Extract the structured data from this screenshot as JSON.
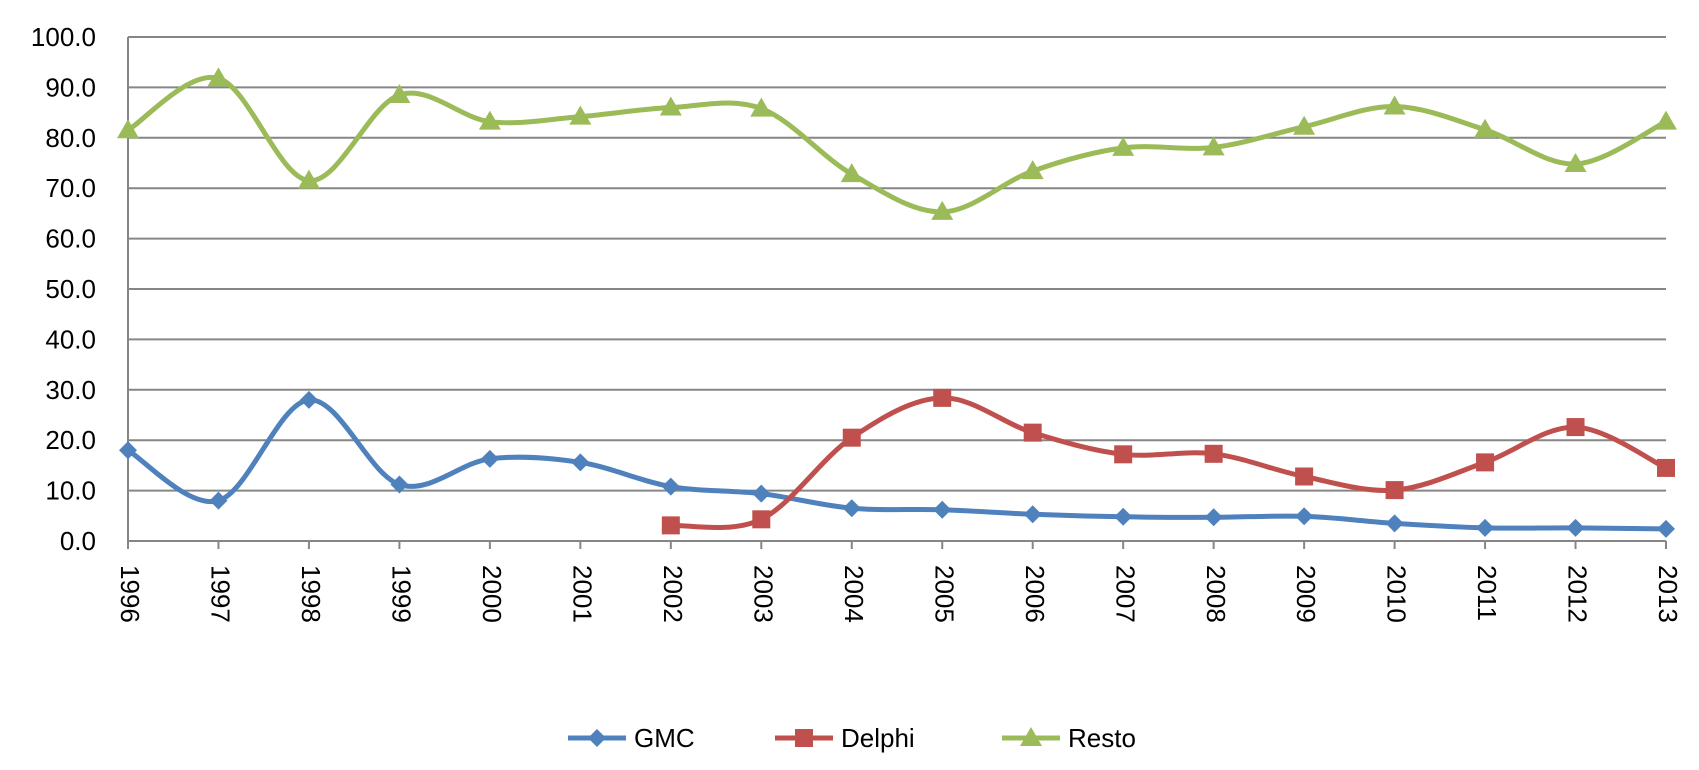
{
  "chart_data": {
    "type": "line",
    "x": [
      "1996",
      "1997",
      "1998",
      "1999",
      "2000",
      "2001",
      "2002",
      "2003",
      "2004",
      "2005",
      "2006",
      "2007",
      "2008",
      "2009",
      "2010",
      "2011",
      "2012",
      "2013"
    ],
    "ylim": [
      0,
      100
    ],
    "yticks": [
      "0.0",
      "10.0",
      "20.0",
      "30.0",
      "40.0",
      "50.0",
      "60.0",
      "70.0",
      "80.0",
      "90.0",
      "100.0"
    ],
    "grid": true,
    "legend_position": "bottom",
    "smooth": true,
    "series": [
      {
        "name": "GMC",
        "color": "#4F81BD",
        "marker": "diamond",
        "values": [
          18.0,
          8.0,
          28.0,
          11.2,
          16.3,
          15.6,
          10.8,
          9.4,
          6.5,
          6.2,
          5.3,
          4.8,
          4.7,
          4.9,
          3.5,
          2.6,
          2.6,
          2.4
        ]
      },
      {
        "name": "Delphi",
        "color": "#C0504D",
        "marker": "square",
        "values": [
          null,
          null,
          null,
          null,
          null,
          null,
          3.1,
          4.3,
          20.5,
          28.4,
          21.5,
          17.2,
          17.3,
          12.8,
          10.1,
          15.6,
          22.6,
          14.5
        ]
      },
      {
        "name": "Resto",
        "color": "#9BBB59",
        "marker": "triangle",
        "values": [
          81.5,
          91.8,
          71.5,
          88.5,
          83.2,
          84.2,
          86.0,
          85.8,
          72.8,
          65.3,
          73.4,
          78.0,
          78.1,
          82.2,
          86.2,
          81.6,
          74.8,
          83.2
        ]
      }
    ]
  }
}
